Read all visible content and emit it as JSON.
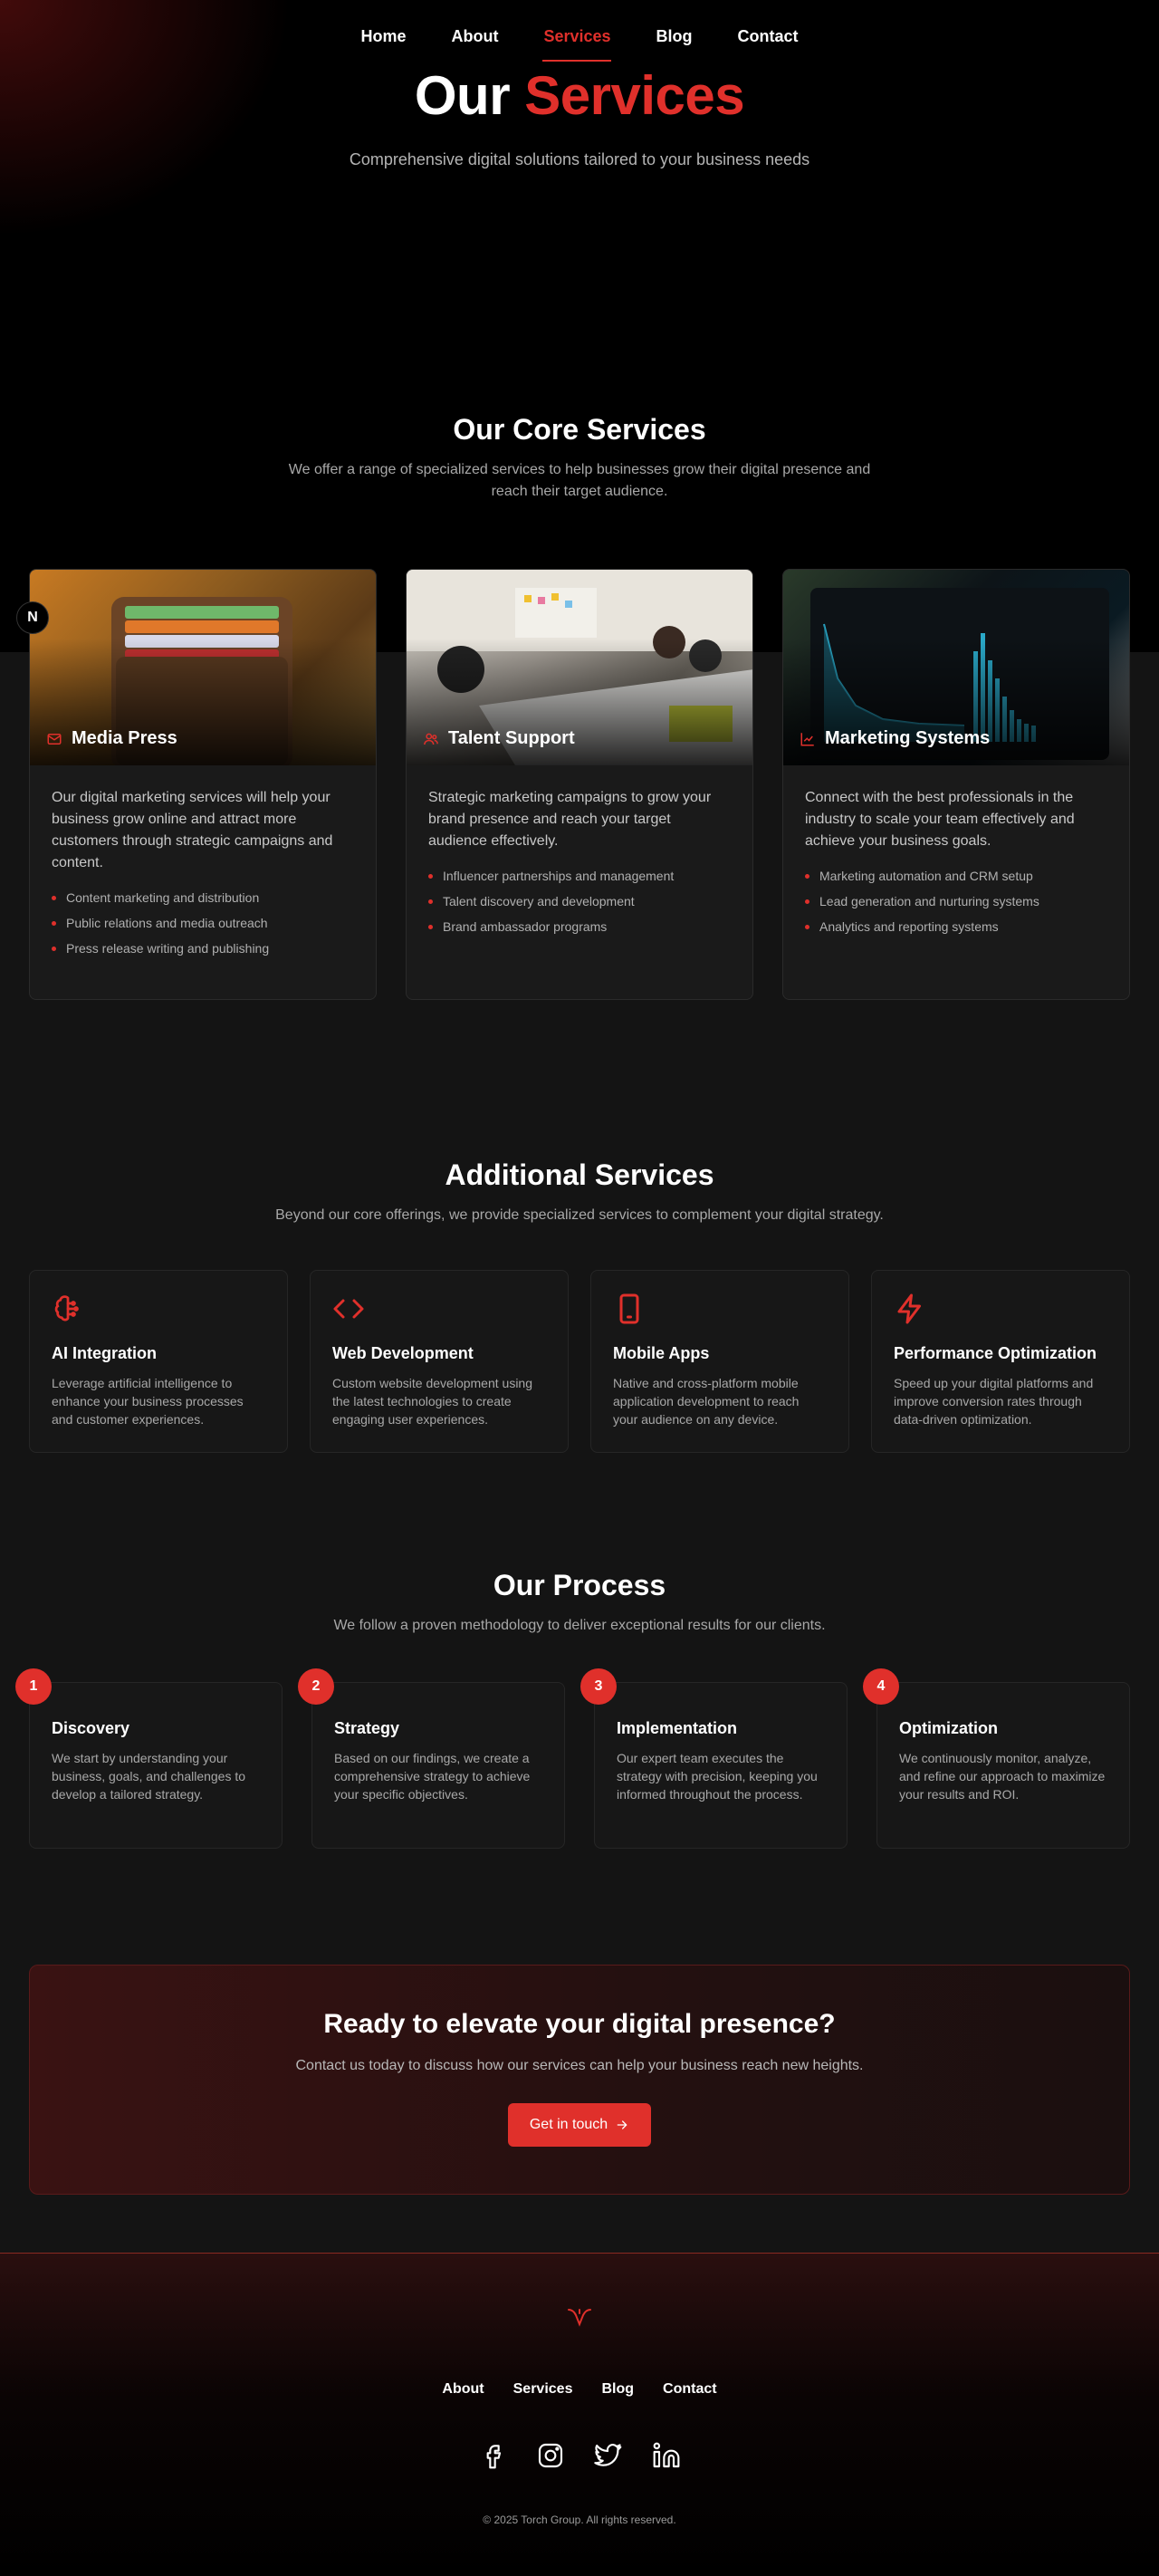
{
  "nav": {
    "items": [
      {
        "label": "Home",
        "active": false
      },
      {
        "label": "About",
        "active": false
      },
      {
        "label": "Services",
        "active": true
      },
      {
        "label": "Blog",
        "active": false
      },
      {
        "label": "Contact",
        "active": false
      }
    ]
  },
  "hero": {
    "title_part1": "Our",
    "title_part2": "Services",
    "subtitle": "Comprehensive digital solutions tailored to your business needs"
  },
  "floating_button": {
    "label": "N"
  },
  "core": {
    "title": "Our Core Services",
    "subtitle": "We offer a range of specialized services to help businesses grow their digital presence and reach their target audience.",
    "cards": [
      {
        "icon": "mail-icon",
        "title": "Media Press",
        "description": "Our digital marketing services will help your business grow online and attract more customers through strategic campaigns and content.",
        "items": [
          "Content marketing and distribution",
          "Public relations and media outreach",
          "Press release writing and publishing"
        ]
      },
      {
        "icon": "users-icon",
        "title": "Talent Support",
        "description": "Strategic marketing campaigns to grow your brand presence and reach your target audience effectively.",
        "items": [
          "Influencer partnerships and management",
          "Talent discovery and development",
          "Brand ambassador programs"
        ]
      },
      {
        "icon": "chart-line-icon",
        "title": "Marketing Systems",
        "description": "Connect with the best professionals in the industry to scale your team effectively and achieve your business goals.",
        "items": [
          "Marketing automation and CRM setup",
          "Lead generation and nurturing systems",
          "Analytics and reporting systems"
        ]
      }
    ]
  },
  "additional": {
    "title": "Additional Services",
    "subtitle": "Beyond our core offerings, we provide specialized services to complement your digital strategy.",
    "cards": [
      {
        "icon": "brain-icon",
        "title": "AI Integration",
        "description": "Leverage artificial intelligence to enhance your business processes and customer experiences."
      },
      {
        "icon": "code-icon",
        "title": "Web Development",
        "description": "Custom website development using the latest technologies to create engaging user experiences."
      },
      {
        "icon": "smartphone-icon",
        "title": "Mobile Apps",
        "description": "Native and cross-platform mobile application development to reach your audience on any device."
      },
      {
        "icon": "lightning-icon",
        "title": "Performance Optimization",
        "description": "Speed up your digital platforms and improve conversion rates through data-driven optimization."
      }
    ]
  },
  "process": {
    "title": "Our Process",
    "subtitle": "We follow a proven methodology to deliver exceptional results for our clients.",
    "steps": [
      {
        "number": "1",
        "title": "Discovery",
        "description": "We start by understanding your business, goals, and challenges to develop a tailored strategy."
      },
      {
        "number": "2",
        "title": "Strategy",
        "description": "Based on our findings, we create a comprehensive strategy to achieve your specific objectives."
      },
      {
        "number": "3",
        "title": "Implementation",
        "description": "Our expert team executes the strategy with precision, keeping you informed throughout the process."
      },
      {
        "number": "4",
        "title": "Optimization",
        "description": "We continuously monitor, analyze, and refine our approach to maximize your results and ROI."
      }
    ]
  },
  "cta": {
    "title": "Ready to elevate your digital presence?",
    "subtitle": "Contact us today to discuss how our services can help your business reach new heights.",
    "button_label": "Get in touch"
  },
  "footer": {
    "nav": [
      "About",
      "Services",
      "Blog",
      "Contact"
    ],
    "social": [
      "facebook-icon",
      "instagram-icon",
      "twitter-icon",
      "linkedin-icon"
    ],
    "copyright": "© 2025 Torch Group. All rights reserved."
  },
  "colors": {
    "accent": "#e0302b",
    "background": "#141414",
    "card": "#1a1a1a"
  }
}
